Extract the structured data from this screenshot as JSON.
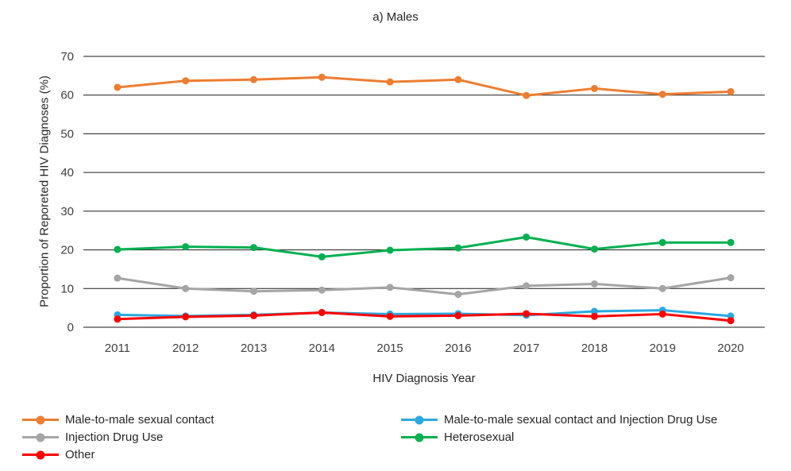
{
  "chart_data": {
    "type": "line",
    "title": "a) Males",
    "xlabel": "HIV Diagnosis Year",
    "ylabel": "Proportion of Reporeted HIV Diagnoses (%)",
    "x": [
      2011,
      2012,
      2013,
      2014,
      2015,
      2016,
      2017,
      2018,
      2019,
      2020
    ],
    "ylim": [
      0,
      70
    ],
    "ytick_step": 10,
    "grid": "horizontal",
    "grid_color": "#1a1a1a",
    "background": "#FFFFFF",
    "legend_position": "bottom",
    "series": [
      {
        "name": "Male-to-male sexual contact",
        "color": "#ED7D31",
        "values": [
          62.0,
          63.7,
          64.0,
          64.6,
          63.4,
          64.0,
          59.9,
          61.7,
          60.2,
          60.9
        ]
      },
      {
        "name": "Male-to-male sexual contact and Injection Drug Use",
        "color": "#2BA9E0",
        "values": [
          3.2,
          2.9,
          3.2,
          3.8,
          3.4,
          3.5,
          3.1,
          4.1,
          4.4,
          2.9
        ]
      },
      {
        "name": "Injection Drug Use",
        "color": "#A5A5A5",
        "values": [
          12.7,
          10.0,
          9.3,
          9.6,
          10.3,
          8.5,
          10.7,
          11.2,
          10.0,
          12.8
        ]
      },
      {
        "name": "Heterosexual",
        "color": "#00B050",
        "values": [
          20.1,
          20.8,
          20.6,
          18.2,
          19.9,
          20.5,
          23.3,
          20.2,
          21.9,
          21.9
        ]
      },
      {
        "name": "Other",
        "color": "#FF0000",
        "values": [
          2.1,
          2.7,
          3.0,
          3.8,
          2.8,
          3.0,
          3.5,
          2.8,
          3.4,
          1.7
        ]
      }
    ],
    "legend_columns": [
      [
        0,
        2,
        4
      ],
      [
        1,
        3
      ]
    ]
  }
}
